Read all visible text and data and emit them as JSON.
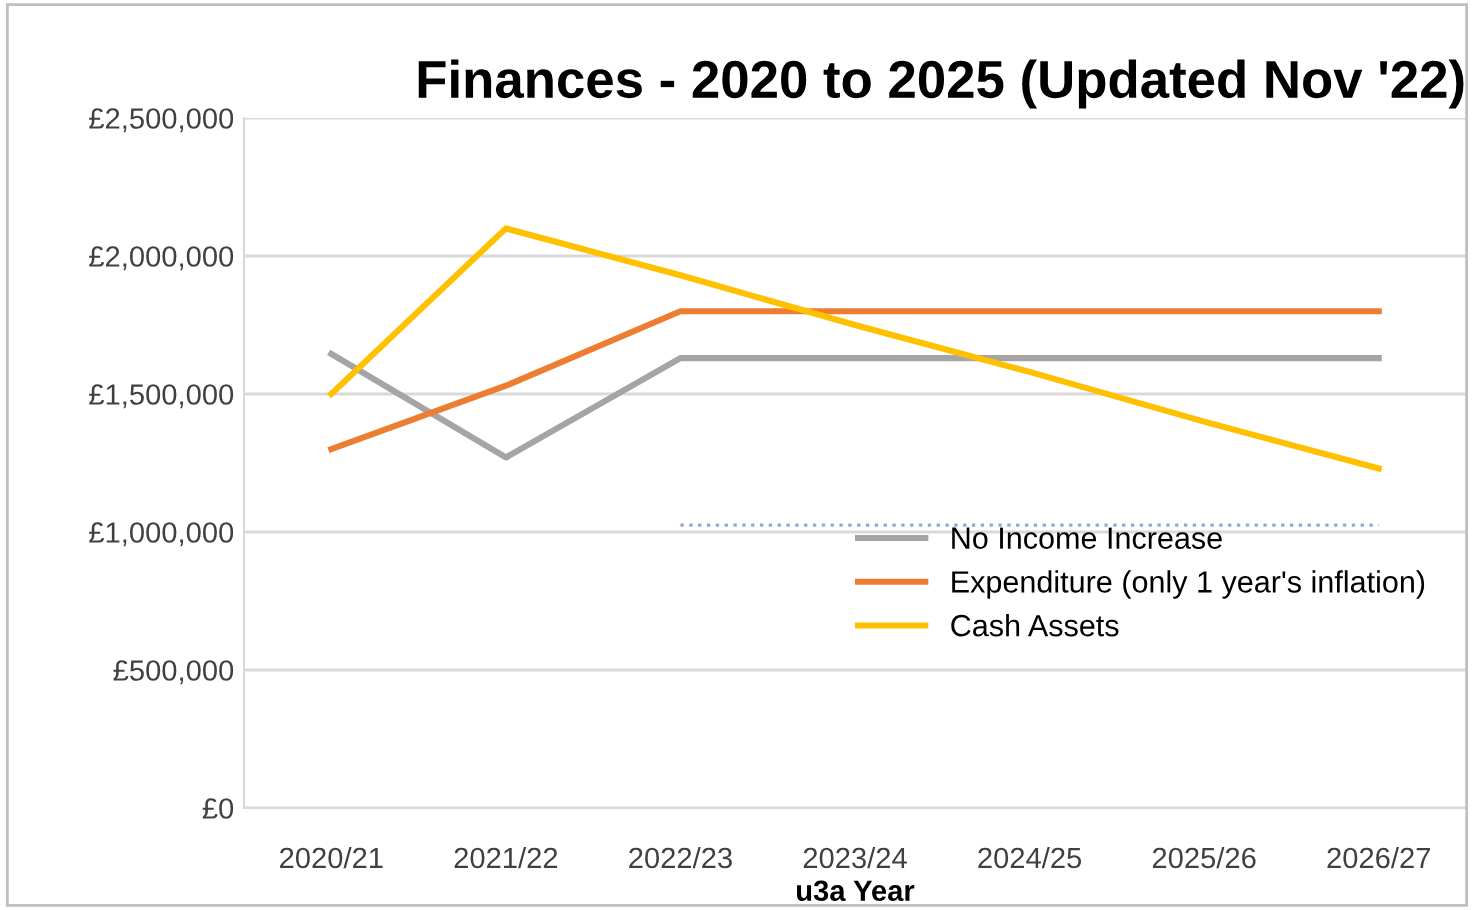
{
  "chart_data": {
    "type": "line",
    "title": "Finances - 2020 to 2025 (Updated Nov '22)",
    "xlabel": "u3a Year",
    "categories": [
      "2020/21",
      "2021/22",
      "2022/23",
      "2023/24",
      "2024/25",
      "2025/26",
      "2026/27"
    ],
    "series": [
      {
        "name": "No Income Increase",
        "color": "#a5a5a5",
        "values": [
          1645000,
          1270000,
          1630000,
          1630000,
          1630000,
          1630000,
          1630000
        ]
      },
      {
        "name": "Expenditure (only 1 year's inflation)",
        "color": "#ed7d31",
        "values": [
          1300000,
          1530000,
          1800000,
          1800000,
          1800000,
          1800000,
          1800000
        ]
      },
      {
        "name": "Cash Assets",
        "color": "#ffc000",
        "values": [
          1500000,
          2100000,
          1930000,
          1750000,
          1580000,
          1400000,
          1230000
        ]
      },
      {
        "color": "#8faadc",
        "line_style": "dotted",
        "values": [
          null,
          null,
          1025000,
          1025000,
          1025000,
          1025000,
          1025000
        ]
      }
    ],
    "ylim": [
      0,
      2500000
    ],
    "yticks": [
      {
        "value": 0,
        "label": "£0"
      },
      {
        "value": 500000,
        "label": "£500,000"
      },
      {
        "value": 1000000,
        "label": "£1,000,000"
      },
      {
        "value": 1500000,
        "label": "£1,500,000"
      },
      {
        "value": 2000000,
        "label": "£2,000,000"
      },
      {
        "value": 2500000,
        "label": "£2,500,000"
      }
    ],
    "grid": "y",
    "legend": "right",
    "marker": "none",
    "line_style": "solid"
  }
}
